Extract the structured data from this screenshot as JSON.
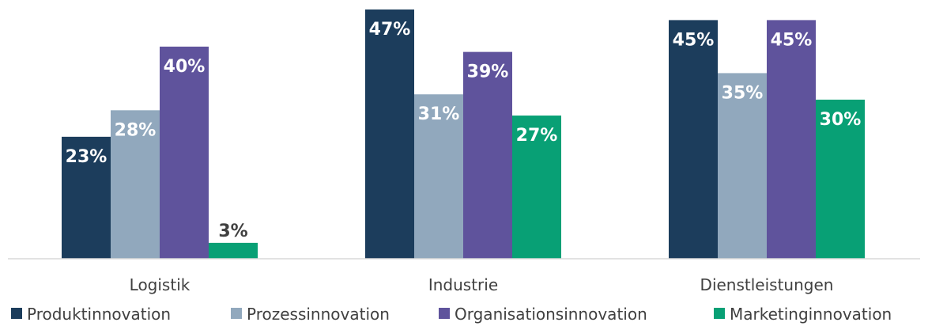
{
  "chart_data": {
    "type": "bar",
    "categories": [
      "Logistik",
      "Industrie",
      "Dienstleistungen"
    ],
    "series": [
      {
        "name": "Produktinnovation",
        "values": [
          23,
          47,
          45
        ],
        "labels": [
          "23%",
          "47%",
          "45%"
        ],
        "color": "#1c3d5c"
      },
      {
        "name": "Prozessinnovation",
        "values": [
          28,
          31,
          35
        ],
        "labels": [
          "28%",
          "31%",
          "35%"
        ],
        "color": "#91a8bd"
      },
      {
        "name": "Organisationsinnovation",
        "values": [
          40,
          39,
          45
        ],
        "labels": [
          "40%",
          "39%",
          "45%"
        ],
        "color": "#5f539c"
      },
      {
        "name": "Marketinginnovation",
        "values": [
          3,
          27,
          30
        ],
        "labels": [
          "3%",
          "27%",
          "30%"
        ],
        "color": "#08a075"
      }
    ],
    "label_placement": "inside-top",
    "title": "",
    "xlabel": "",
    "ylabel": "",
    "ylim": [
      0,
      47
    ],
    "grid": false,
    "legend": "bottom"
  }
}
